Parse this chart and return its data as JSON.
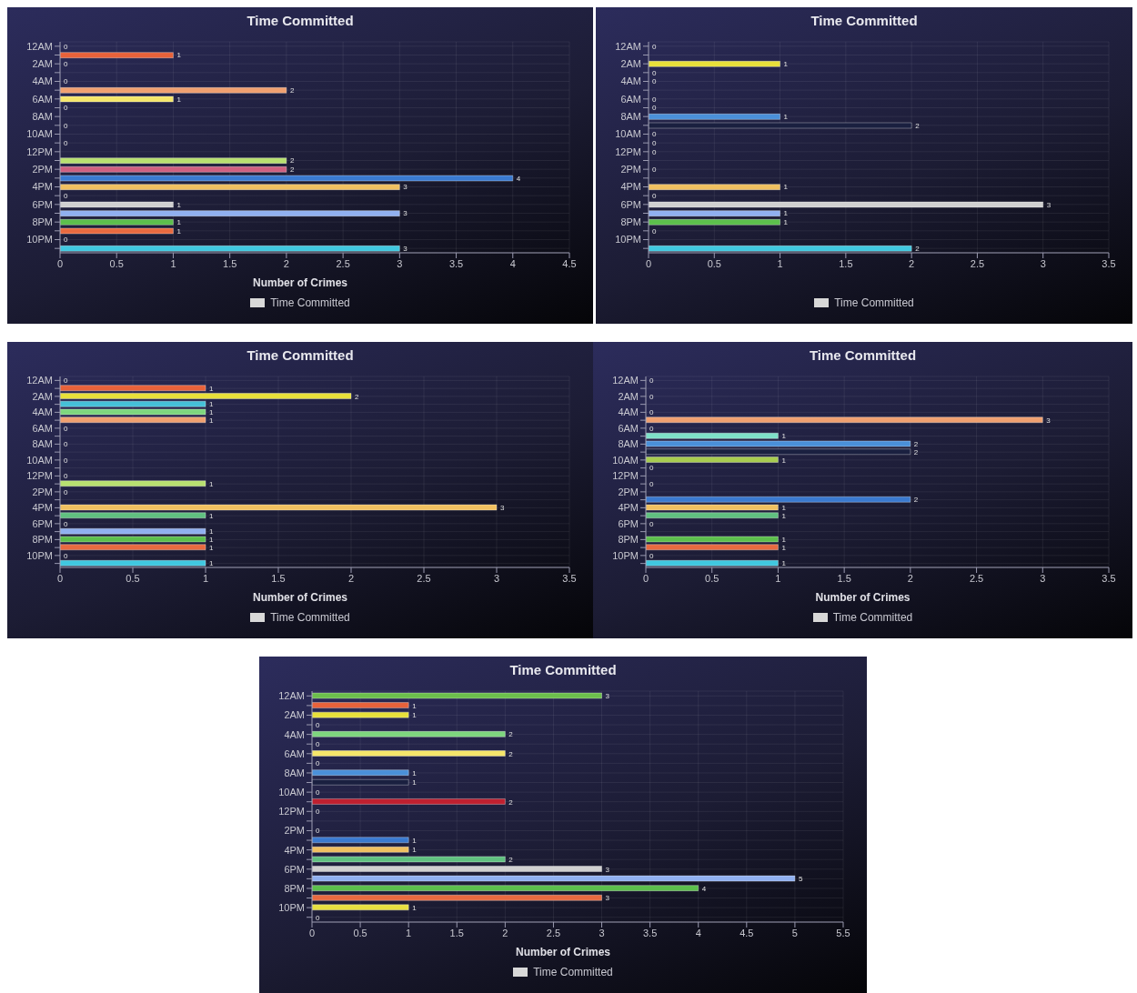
{
  "chart_data": [
    {
      "type": "bar",
      "orientation": "horizontal",
      "title": "Time Committed",
      "xlabel": "Number of Crimes",
      "categories": [
        "12AM",
        null,
        "2AM",
        null,
        "4AM",
        null,
        "6AM",
        null,
        "8AM",
        null,
        "10AM",
        null,
        "12PM",
        null,
        "2PM",
        null,
        "4PM",
        null,
        "6PM",
        null,
        "8PM",
        null,
        "10PM",
        null
      ],
      "series": [
        {
          "name": "Time Committed",
          "color": "#d8d8d8",
          "values": [
            0,
            1,
            0,
            null,
            0,
            2,
            1,
            0,
            null,
            0,
            null,
            0,
            null,
            2,
            2,
            4,
            3,
            0,
            1,
            3,
            1,
            1,
            0,
            3
          ],
          "colors": [
            "#6cbf4c",
            "#e8623a",
            "#e8e03a",
            "#45c0d8",
            "#7ed67e",
            "#f0a070",
            "#f5e66a",
            "#7ee0c8",
            "#4a90d9",
            "#1a2040",
            "#a8cc50",
            "#c02030",
            "#8080c0",
            "#b8e070",
            "#d06080",
            "#3a7ad0",
            "#f0c060",
            "#60c080",
            "#d0d0d0",
            "#90b0f0",
            "#5cbf4c",
            "#e86a40",
            "#e8e040",
            "#40c8e0"
          ]
        }
      ],
      "xlim": [
        0,
        4.5
      ],
      "xticks": [
        0,
        0.5,
        1,
        1.5,
        2,
        2.5,
        3,
        3.5,
        4,
        4.5
      ],
      "grid": true,
      "legend": "bottom",
      "data_labels": true
    },
    {
      "type": "bar",
      "orientation": "horizontal",
      "title": "Time Committed",
      "categories": [
        "12AM",
        null,
        "2AM",
        null,
        "4AM",
        null,
        "6AM",
        null,
        "8AM",
        null,
        "10AM",
        null,
        "12PM",
        null,
        "2PM",
        null,
        "4PM",
        null,
        "6PM",
        null,
        "8PM",
        null,
        "10PM",
        null
      ],
      "series": [
        {
          "name": "Time Committed",
          "color": "#d8d8d8",
          "values": [
            0,
            null,
            1,
            0,
            0,
            null,
            0,
            0,
            1,
            2,
            0,
            0,
            0,
            null,
            0,
            null,
            1,
            0,
            3,
            1,
            1,
            0,
            null,
            2
          ],
          "colors": [
            "#6cbf4c",
            "#e8623a",
            "#e8e03a",
            "#45c0d8",
            "#7ed67e",
            "#f0a070",
            "#f5e66a",
            "#7ee0c8",
            "#4a90d9",
            "#1a2040",
            "#a8cc50",
            "#c02030",
            "#8080c0",
            "#b8e070",
            "#d06080",
            "#3a7ad0",
            "#f0c060",
            "#60c080",
            "#d0d0d0",
            "#90b0f0",
            "#5cbf4c",
            "#e86a40",
            "#e8e040",
            "#40c8e0"
          ]
        }
      ],
      "xlim": [
        0,
        3.5
      ],
      "xticks": [
        0,
        0.5,
        1,
        1.5,
        2,
        2.5,
        3,
        3.5
      ],
      "grid": true,
      "legend": "bottom",
      "data_labels": true
    },
    {
      "type": "bar",
      "orientation": "horizontal",
      "title": "Time Committed",
      "xlabel": "Number of Crimes",
      "categories": [
        "12AM",
        null,
        "2AM",
        null,
        "4AM",
        null,
        "6AM",
        null,
        "8AM",
        null,
        "10AM",
        null,
        "12PM",
        null,
        "2PM",
        null,
        "4PM",
        null,
        "6PM",
        null,
        "8PM",
        null,
        "10PM",
        null
      ],
      "series": [
        {
          "name": "Time Committed",
          "color": "#d8d8d8",
          "values": [
            0,
            1,
            2,
            1,
            1,
            1,
            0,
            null,
            0,
            null,
            0,
            null,
            0,
            1,
            0,
            null,
            3,
            1,
            0,
            1,
            1,
            1,
            0,
            1
          ],
          "colors": [
            "#6cbf4c",
            "#e8623a",
            "#e8e03a",
            "#45c0d8",
            "#7ed67e",
            "#f0a070",
            "#f5e66a",
            "#7ee0c8",
            "#4a90d9",
            "#1a2040",
            "#a8cc50",
            "#c02030",
            "#8080c0",
            "#b8e070",
            "#d06080",
            "#3a7ad0",
            "#f0c060",
            "#60c080",
            "#d0d0d0",
            "#90b0f0",
            "#5cbf4c",
            "#e86a40",
            "#e8e040",
            "#40c8e0"
          ]
        }
      ],
      "xlim": [
        0,
        3.5
      ],
      "xticks": [
        0,
        0.5,
        1,
        1.5,
        2,
        2.5,
        3,
        3.5
      ],
      "grid": true,
      "legend": "bottom",
      "data_labels": true
    },
    {
      "type": "bar",
      "orientation": "horizontal",
      "title": "Time Committed",
      "xlabel": "Number of Crimes",
      "categories": [
        "12AM",
        null,
        "2AM",
        null,
        "4AM",
        null,
        "6AM",
        null,
        "8AM",
        null,
        "10AM",
        null,
        "12PM",
        null,
        "2PM",
        null,
        "4PM",
        null,
        "6PM",
        null,
        "8PM",
        null,
        "10PM",
        null
      ],
      "series": [
        {
          "name": "Time Committed",
          "color": "#d8d8d8",
          "values": [
            0,
            null,
            0,
            null,
            0,
            3,
            0,
            1,
            2,
            2,
            1,
            0,
            null,
            0,
            null,
            2,
            1,
            1,
            0,
            null,
            1,
            1,
            0,
            1
          ],
          "colors": [
            "#6cbf4c",
            "#e8623a",
            "#e8e03a",
            "#45c0d8",
            "#7ed67e",
            "#f0a070",
            "#f5e66a",
            "#7ee0c8",
            "#4a90d9",
            "#1a2040",
            "#a8cc50",
            "#c02030",
            "#8080c0",
            "#b8e070",
            "#d06080",
            "#3a7ad0",
            "#f0c060",
            "#60c080",
            "#d0d0d0",
            "#90b0f0",
            "#5cbf4c",
            "#e86a40",
            "#e8e040",
            "#40c8e0"
          ]
        }
      ],
      "xlim": [
        0,
        3.5
      ],
      "xticks": [
        0,
        0.5,
        1,
        1.5,
        2,
        2.5,
        3,
        3.5
      ],
      "grid": true,
      "legend": "bottom",
      "data_labels": true
    },
    {
      "type": "bar",
      "orientation": "horizontal",
      "title": "Time Committed",
      "xlabel": "Number of Crimes",
      "categories": [
        "12AM",
        null,
        "2AM",
        null,
        "4AM",
        null,
        "6AM",
        null,
        "8AM",
        null,
        "10AM",
        null,
        "12PM",
        null,
        "2PM",
        null,
        "4PM",
        null,
        "6PM",
        null,
        "8PM",
        null,
        "10PM",
        null
      ],
      "series": [
        {
          "name": "Time Committed",
          "color": "#d8d8d8",
          "values": [
            3,
            1,
            1,
            0,
            2,
            0,
            2,
            0,
            1,
            1,
            0,
            2,
            0,
            null,
            0,
            1,
            1,
            2,
            3,
            5,
            4,
            3,
            1,
            0
          ],
          "colors": [
            "#6cbf4c",
            "#e8623a",
            "#e8e03a",
            "#45c0d8",
            "#7ed67e",
            "#f0a070",
            "#f5e66a",
            "#7ee0c8",
            "#4a90d9",
            "#1a2040",
            "#a8cc50",
            "#c02030",
            "#8080c0",
            "#b8e070",
            "#d06080",
            "#3a7ad0",
            "#f0c060",
            "#60c080",
            "#d0d0d0",
            "#90b0f0",
            "#5cbf4c",
            "#e86a40",
            "#e8e040",
            "#40c8e0"
          ]
        }
      ],
      "xlim": [
        0,
        5.5
      ],
      "xticks": [
        0,
        0.5,
        1,
        1.5,
        2,
        2.5,
        3,
        3.5,
        4,
        4.5,
        5,
        5.5
      ],
      "grid": true,
      "legend": "bottom",
      "data_labels": true
    }
  ]
}
